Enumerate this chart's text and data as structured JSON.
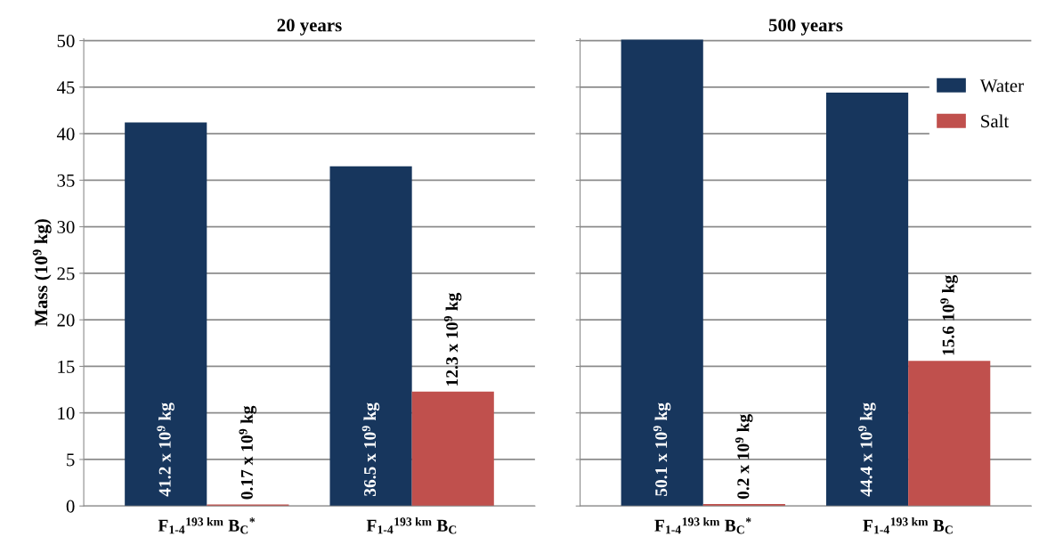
{
  "chart_data": [
    {
      "type": "bar",
      "title": "20 years",
      "ylabel": "Mass (10$^{9}$ kg)",
      "categories": [
        "F$_{1-4}$$^{193 km}$ B$_{C}$$^{*}$",
        "F$_{1-4}$$^{193 km}$ B$_{C}$"
      ],
      "series": [
        {
          "color": "#17365d",
          "values": [
            41.2,
            36.5
          ],
          "value_labels": [
            "41.2 x 10$^{9}$ kg",
            "36.5 x 10$^{9}$ kg"
          ]
        },
        {
          "color": "#c0504d",
          "values": [
            0.17,
            12.3
          ],
          "value_labels": [
            "0.17 x 10$^{9}$ kg",
            "12.3 x 10$^{9}$ kg"
          ]
        }
      ],
      "ylim": [
        0,
        50.2
      ],
      "yticks": [
        0,
        5,
        10,
        15,
        20,
        25,
        30,
        35,
        40,
        45,
        50
      ],
      "grid": "y"
    },
    {
      "type": "bar",
      "title": "500 years",
      "categories": [
        "F$_{1-4}$$^{193 km}$ B$_{C}$$^{*}$",
        "F$_{1-4}$$^{193 km}$ B$_{C}$"
      ],
      "series": [
        {
          "name": "Water",
          "color": "#17365d",
          "values": [
            50.1,
            44.4
          ],
          "value_labels": [
            "50.1 x 10$^{9}$ kg",
            "44.4 x 10$^{9}$ kg"
          ]
        },
        {
          "name": "Salt",
          "color": "#c0504d",
          "values": [
            0.2,
            15.6
          ],
          "value_labels": [
            "0.2 x 10$^{9}$ kg",
            "15.6 10$^{9}$ kg"
          ]
        }
      ],
      "ylim": [
        0,
        50.2
      ],
      "yticks": [
        0,
        5,
        10,
        15,
        20,
        25,
        30,
        35,
        40,
        45,
        50
      ],
      "grid": "y",
      "legend": "top right",
      "tick_labels": "x"
    }
  ]
}
